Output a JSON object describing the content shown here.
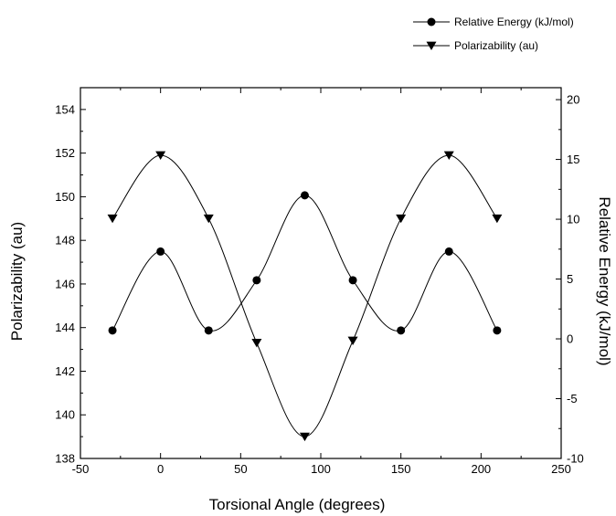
{
  "chart_data": {
    "type": "line",
    "xlabel": "Torsional Angle (degrees)",
    "ylabel_left": "Polarizability (au)",
    "ylabel_right": "Relative Energy (kJ/mol)",
    "xlim": [
      -50,
      250
    ],
    "ylim_left": [
      138,
      155
    ],
    "ylim_right": [
      -10,
      21
    ],
    "x_ticks": [
      -50,
      0,
      50,
      100,
      150,
      200,
      250
    ],
    "y_left_ticks": [
      138,
      140,
      142,
      144,
      146,
      148,
      150,
      152,
      154
    ],
    "y_right_ticks": [
      -10,
      -5,
      0,
      5,
      10,
      15,
      20
    ],
    "legend": "top-right",
    "series": [
      {
        "name": "Relative Energy (kJ/mol)",
        "axis": "right",
        "marker": "circle",
        "x": [
          -30,
          0,
          30,
          60,
          90,
          120,
          150,
          180,
          210
        ],
        "y": [
          0.7,
          7.3,
          0.7,
          4.9,
          12.0,
          4.9,
          0.7,
          7.3,
          0.7
        ]
      },
      {
        "name": "Polarizability (au)",
        "axis": "left",
        "marker": "triangle-down",
        "x": [
          -30,
          0,
          30,
          60,
          90,
          120,
          150,
          180,
          210
        ],
        "y": [
          149.0,
          151.9,
          149.0,
          143.3,
          139.0,
          143.4,
          149.0,
          151.9,
          149.0
        ]
      }
    ]
  }
}
